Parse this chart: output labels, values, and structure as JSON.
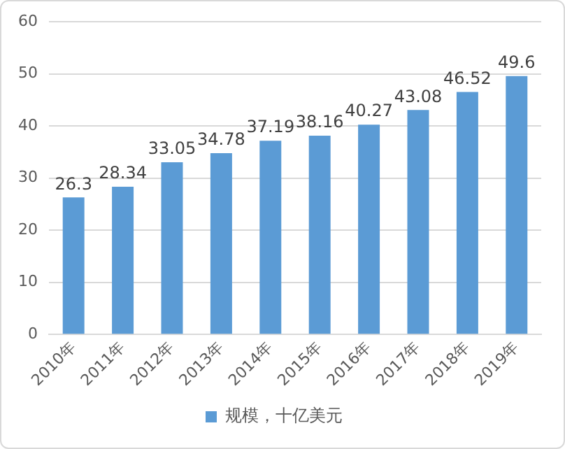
{
  "chart_data": {
    "type": "bar",
    "categories": [
      "2010年",
      "2011年",
      "2012年",
      "2013年",
      "2014年",
      "2015年",
      "2016年",
      "2017年",
      "2018年",
      "2019年"
    ],
    "series": [
      {
        "name": "规模，十亿美元",
        "color": "#5b9bd5",
        "values": [
          26.3,
          28.34,
          33.05,
          34.78,
          37.19,
          38.16,
          40.27,
          43.08,
          46.52,
          49.6
        ]
      }
    ],
    "ylim": [
      0,
      60
    ],
    "yticks": [
      0,
      10,
      20,
      30,
      40,
      50,
      60
    ],
    "grid": "y",
    "legend": "bottom",
    "data_labels": true
  }
}
